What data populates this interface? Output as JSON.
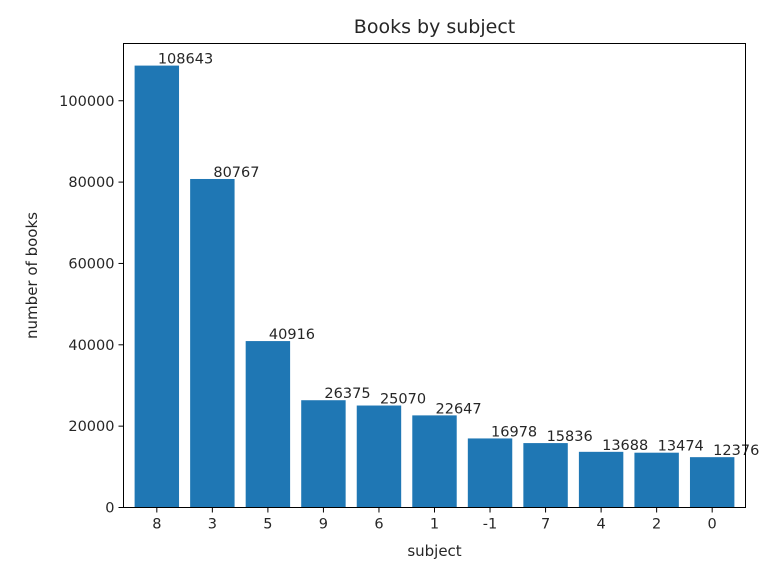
{
  "chart_data": {
    "type": "bar",
    "title": "Books by subject",
    "xlabel": "subject",
    "ylabel": "number of books",
    "categories": [
      "8",
      "3",
      "5",
      "9",
      "6",
      "1",
      "-1",
      "7",
      "4",
      "2",
      "0"
    ],
    "values": [
      108643,
      80767,
      40916,
      26375,
      25070,
      22647,
      16978,
      15836,
      13688,
      13474,
      12376
    ],
    "data_labels": [
      "108643",
      "80767",
      "40916",
      "26375",
      "25070",
      "22647",
      "16978",
      "15836",
      "13688",
      "13474",
      "12376"
    ],
    "ylim": [
      0,
      114075
    ],
    "yticks": [
      0,
      20000,
      40000,
      60000,
      80000,
      100000
    ],
    "ytick_labels": [
      "0",
      "20000",
      "40000",
      "60000",
      "80000",
      "100000"
    ],
    "bar_color": "#1f77b4",
    "grid": false,
    "legend": false
  }
}
